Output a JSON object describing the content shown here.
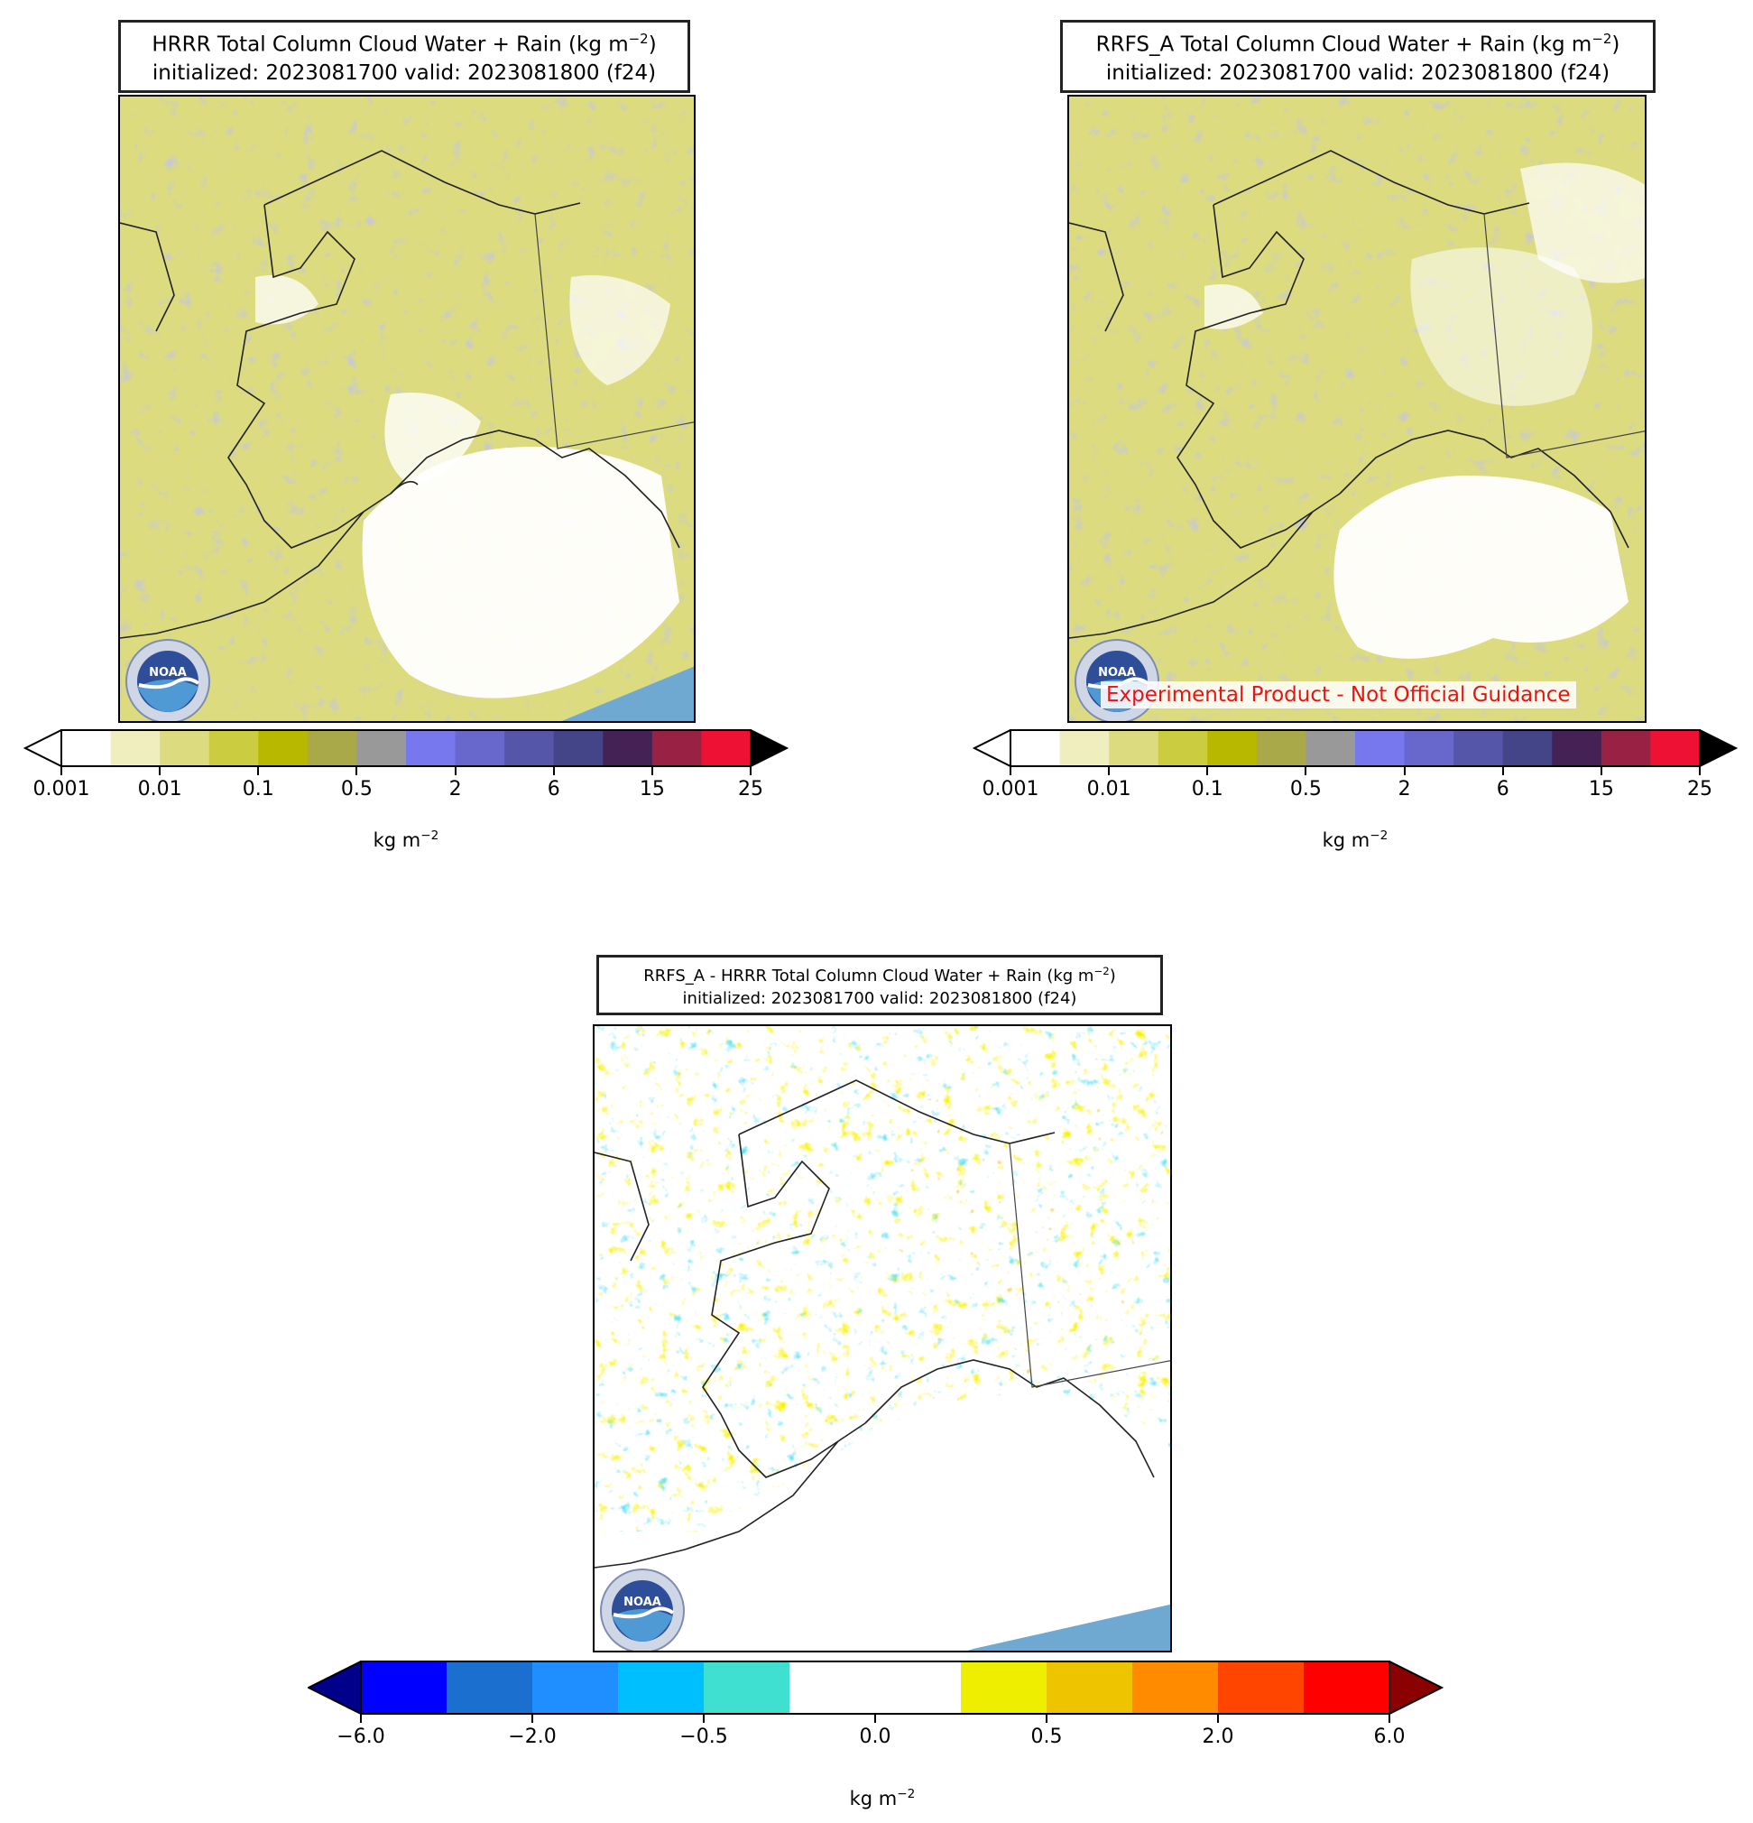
{
  "panels": [
    {
      "id": "hrrr",
      "title_line1": "HRRR Total Column Cloud Water + Rain (kg m",
      "title_exp": "−2",
      "title_line1_end": ")",
      "title_line2": "initialized: 2023081700 valid: 2023081800 (f24)"
    },
    {
      "id": "rrfs",
      "title_line1": "RRFS_A Total Column Cloud Water + Rain (kg m",
      "title_exp": "−2",
      "title_line1_end": ")",
      "title_line2": "initialized: 2023081700 valid: 2023081800 (f24)",
      "disclaimer": "Experimental Product - Not Official Guidance"
    },
    {
      "id": "diff",
      "title_line1": "RRFS_A - HRRR Total Column Cloud Water + Rain (kg m",
      "title_exp": "−2",
      "title_line1_end": ")",
      "title_line2": "initialized: 2023081700 valid: 2023081800 (f24)"
    }
  ],
  "colorbar_top": {
    "ticks": [
      "0.001",
      "0.01",
      "0.1",
      "0.5",
      "2",
      "6",
      "15",
      "25"
    ],
    "label_main": "kg m",
    "label_exp": "−2",
    "colors": [
      "#ffffff",
      "#efeebf",
      "#dcdb80",
      "#cccc40",
      "#b8b800",
      "#a9a94a",
      "#999999",
      "#7777ee",
      "#6868cc",
      "#5555aa",
      "#444488",
      "#442255",
      "#992244",
      "#ee1133"
    ],
    "under_color": "#ffffff",
    "over_color": "#000000"
  },
  "colorbar_diff": {
    "ticks": [
      "−6.0",
      "−2.0",
      "−0.5",
      "0.0",
      "0.5",
      "2.0",
      "6.0"
    ],
    "label_main": "kg m",
    "label_exp": "−2",
    "colors": [
      "#0000ff",
      "#1a6fcf",
      "#1f8fff",
      "#00bfff",
      "#40e0d0",
      "#ffffff",
      "#ffffff",
      "#eeee00",
      "#eec400",
      "#ff8c00",
      "#ff4500",
      "#ff0000"
    ],
    "under_color": "#00008b",
    "over_color": "#8b0000"
  },
  "logo": {
    "text": "NOAA",
    "icon": "noaa-logo-icon"
  },
  "map_colors": {
    "field_olive": "#b8b800",
    "field_light": "#dcdb80",
    "field_grey": "#999999",
    "field_purple": "#7777ee",
    "ocean_fill": "#6fa8d0"
  }
}
